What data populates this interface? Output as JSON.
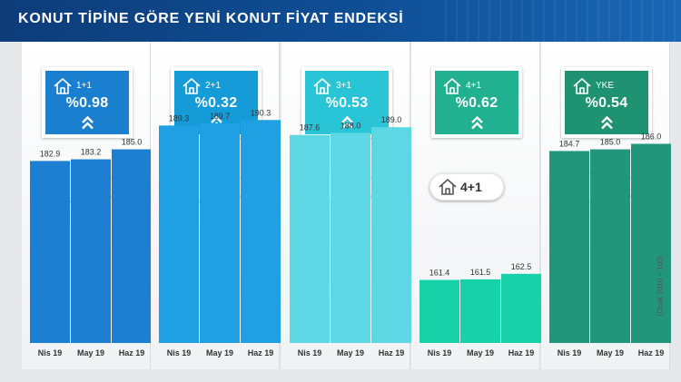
{
  "header": {
    "title": "KONUT TİPİNE GÖRE YENİ KONUT FİYAT ENDEKSİ"
  },
  "scale": {
    "min": 150,
    "max": 191
  },
  "note": "(Ocak 2010 = 100)",
  "panels": [
    {
      "label": "1+1",
      "pct": "%0.98",
      "color": "#1d7fd1",
      "card_color": "#1b7fcf",
      "icon": "house-icon"
    },
    {
      "label": "2+1",
      "pct": "%0.32",
      "color": "#1fa0e2",
      "card_color": "#159bd8",
      "icon": "house-icon"
    },
    {
      "label": "3+1",
      "pct": "%0.53",
      "color": "#5dd7e3",
      "card_color": "#29c4d6",
      "icon": "house-icon"
    },
    {
      "label": "4+1",
      "pct": "%0.62",
      "color": "#17d2a8",
      "card_color": "#22b190",
      "icon": "house-icon"
    },
    {
      "label": "YKE",
      "pct": "%0.54",
      "color": "#22967b",
      "card_color": "#1f9272",
      "icon": "house-icon"
    }
  ],
  "chart_data": [
    {
      "type": "bar",
      "categories": [
        "Nis 19",
        "May 19",
        "Haz 19"
      ],
      "series": [
        {
          "name": "1+1",
          "values": [
            182.9,
            183.2,
            185.0
          ],
          "labels": [
            "182.9",
            "183.2",
            "185.0"
          ]
        }
      ]
    },
    {
      "type": "bar",
      "categories": [
        "Nis 19",
        "May 19",
        "Haz 19"
      ],
      "series": [
        {
          "name": "2+1",
          "values": [
            189.3,
            189.7,
            190.3
          ],
          "labels": [
            "189.3",
            "189.7",
            "190.3"
          ]
        }
      ]
    },
    {
      "type": "bar",
      "categories": [
        "Nis 19",
        "May 19",
        "Haz 19"
      ],
      "series": [
        {
          "name": "3+1",
          "values": [
            187.6,
            188.0,
            189.0
          ],
          "labels": [
            "187.6",
            "188.0",
            "189.0"
          ]
        }
      ]
    },
    {
      "type": "bar",
      "categories": [
        "Nis 19",
        "May 19",
        "Haz 19"
      ],
      "series": [
        {
          "name": "4+1",
          "values": [
            161.4,
            161.5,
            162.5
          ],
          "labels": [
            "161.4",
            "161.5",
            "162.5"
          ]
        }
      ]
    },
    {
      "type": "bar",
      "categories": [
        "Nis 19",
        "May 19",
        "Haz 19"
      ],
      "series": [
        {
          "name": "YKE",
          "values": [
            184.7,
            185.0,
            186.0
          ],
          "labels": [
            "184.7",
            "185.0",
            "186.0"
          ]
        }
      ]
    }
  ]
}
